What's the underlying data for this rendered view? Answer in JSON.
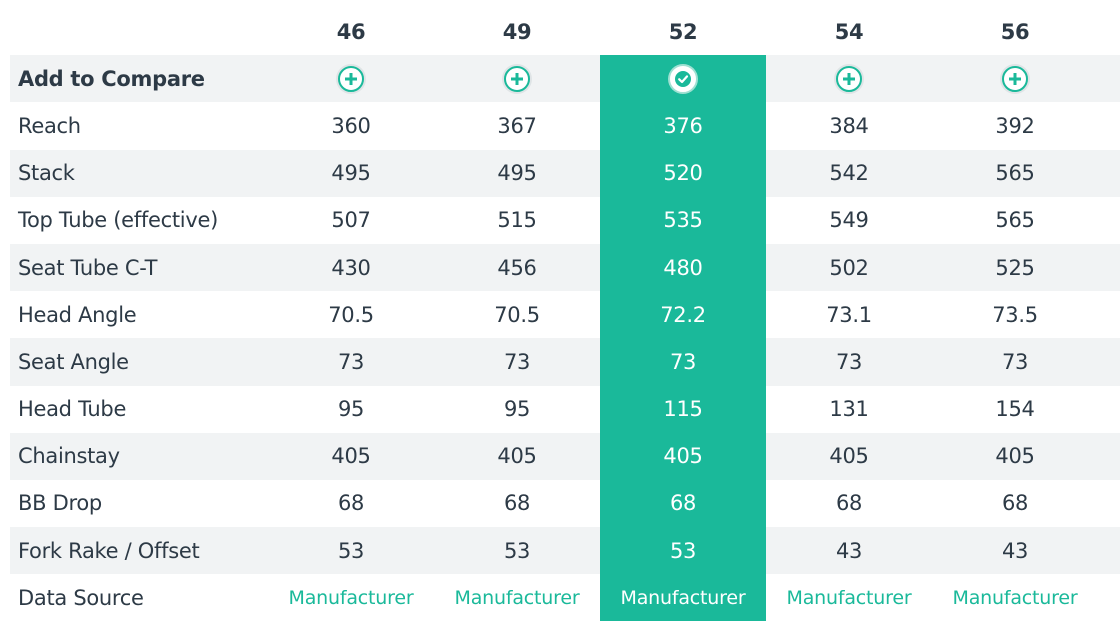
{
  "table": {
    "sizes": [
      "46",
      "49",
      "52",
      "54",
      "56"
    ],
    "selected_index": 2,
    "compare_label": "Add to Compare",
    "rows": [
      {
        "label": "Reach",
        "values": [
          "360",
          "367",
          "376",
          "384",
          "392"
        ]
      },
      {
        "label": "Stack",
        "values": [
          "495",
          "495",
          "520",
          "542",
          "565"
        ]
      },
      {
        "label": "Top Tube (effective)",
        "values": [
          "507",
          "515",
          "535",
          "549",
          "565"
        ]
      },
      {
        "label": "Seat Tube C-T",
        "values": [
          "430",
          "456",
          "480",
          "502",
          "525"
        ]
      },
      {
        "label": "Head Angle",
        "values": [
          "70.5",
          "70.5",
          "72.2",
          "73.1",
          "73.5"
        ]
      },
      {
        "label": "Seat Angle",
        "values": [
          "73",
          "73",
          "73",
          "73",
          "73"
        ]
      },
      {
        "label": "Head Tube",
        "values": [
          "95",
          "95",
          "115",
          "131",
          "154"
        ]
      },
      {
        "label": "Chainstay",
        "values": [
          "405",
          "405",
          "405",
          "405",
          "405"
        ]
      },
      {
        "label": "BB Drop",
        "values": [
          "68",
          "68",
          "68",
          "68",
          "68"
        ]
      },
      {
        "label": "Fork Rake / Offset",
        "values": [
          "53",
          "53",
          "53",
          "43",
          "43"
        ]
      }
    ],
    "source_label": "Data Source",
    "source_values": [
      "Manufacturer",
      "Manufacturer",
      "Manufacturer",
      "Manufacturer",
      "Manufacturer"
    ],
    "icons": {
      "add": "plus-circle-icon",
      "added": "check-circle-icon"
    },
    "colors": {
      "accent": "#1ab99a",
      "text": "#2d3a46",
      "row_shade": "#f1f3f4"
    }
  }
}
